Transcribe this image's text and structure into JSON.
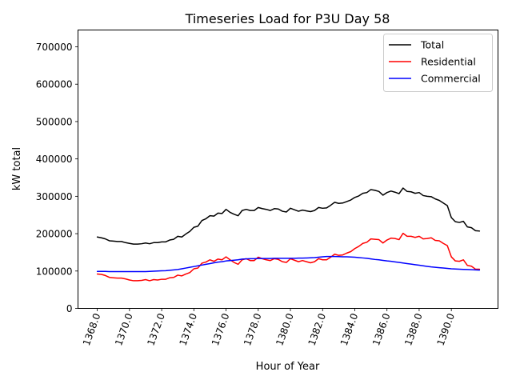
{
  "chart_data": {
    "type": "line",
    "title": "Timeseries Load for P3U   Day 58",
    "xlabel": "Hour of Year",
    "ylabel": "kW total",
    "xlim": [
      1366.8,
      1392.9
    ],
    "ylim": [
      0,
      745000
    ],
    "xticks": [
      1368.0,
      1370.0,
      1372.0,
      1374.0,
      1376.0,
      1378.0,
      1380.0,
      1382.0,
      1384.0,
      1386.0,
      1388.0,
      1390.0
    ],
    "xtick_labels": [
      "1368.0",
      "1370.0",
      "1372.0",
      "1374.0",
      "1376.0",
      "1378.0",
      "1380.0",
      "1382.0",
      "1384.0",
      "1386.0",
      "1388.0",
      "1390.0"
    ],
    "yticks": [
      0,
      100000,
      200000,
      300000,
      400000,
      500000,
      600000,
      700000
    ],
    "ytick_labels": [
      "0",
      "100000",
      "200000",
      "300000",
      "400000",
      "500000",
      "600000",
      "700000"
    ],
    "legend_position": "top-right",
    "x": [
      1368.0,
      1368.25,
      1368.5,
      1368.75,
      1369.0,
      1369.25,
      1369.5,
      1369.75,
      1370.0,
      1370.25,
      1370.5,
      1370.75,
      1371.0,
      1371.25,
      1371.5,
      1371.75,
      1372.0,
      1372.25,
      1372.5,
      1372.75,
      1373.0,
      1373.25,
      1373.5,
      1373.75,
      1374.0,
      1374.25,
      1374.5,
      1374.75,
      1375.0,
      1375.25,
      1375.5,
      1375.75,
      1376.0,
      1376.25,
      1376.5,
      1376.75,
      1377.0,
      1377.25,
      1377.5,
      1377.75,
      1378.0,
      1378.25,
      1378.5,
      1378.75,
      1379.0,
      1379.25,
      1379.5,
      1379.75,
      1380.0,
      1380.25,
      1380.5,
      1380.75,
      1381.0,
      1381.25,
      1381.5,
      1381.75,
      1382.0,
      1382.25,
      1382.5,
      1382.75,
      1383.0,
      1383.25,
      1383.5,
      1383.75,
      1384.0,
      1384.25,
      1384.5,
      1384.75,
      1385.0,
      1385.25,
      1385.5,
      1385.75,
      1386.0,
      1386.25,
      1386.5,
      1386.75,
      1387.0,
      1387.25,
      1387.5,
      1387.75,
      1388.0,
      1388.25,
      1388.5,
      1388.75,
      1389.0,
      1389.25,
      1389.5,
      1389.75,
      1390.0,
      1390.25,
      1390.5,
      1390.75,
      1391.0,
      1391.25,
      1391.5,
      1391.75
    ],
    "series": [
      {
        "name": "Total",
        "color": "#000000",
        "values": [
          191000,
          189000,
          186000,
          181000,
          180000,
          179000,
          179000,
          176000,
          174000,
          172000,
          172000,
          173000,
          175000,
          173000,
          176000,
          176000,
          178000,
          178000,
          183000,
          185000,
          193000,
          191000,
          199000,
          206000,
          217000,
          220000,
          235000,
          240000,
          248000,
          247000,
          255000,
          254000,
          265000,
          257000,
          252000,
          248000,
          262000,
          265000,
          262000,
          262000,
          270000,
          267000,
          265000,
          262000,
          267000,
          266000,
          260000,
          258000,
          268000,
          264000,
          260000,
          263000,
          261000,
          259000,
          262000,
          270000,
          268000,
          269000,
          276000,
          284000,
          281000,
          282000,
          286000,
          290000,
          297000,
          301000,
          308000,
          310000,
          318000,
          316000,
          313000,
          303000,
          310000,
          314000,
          311000,
          307000,
          322000,
          313000,
          312000,
          308000,
          310000,
          302000,
          300000,
          299000,
          293000,
          289000,
          282000,
          275000,
          243000,
          232000,
          230000,
          233000,
          218000,
          216000,
          208000,
          207000
        ]
      },
      {
        "name": "Residential",
        "color": "#ff0000",
        "values": [
          92000,
          91000,
          88000,
          83000,
          82000,
          81000,
          81000,
          79000,
          76000,
          74000,
          74000,
          75000,
          77000,
          74000,
          77000,
          76000,
          78000,
          78000,
          82000,
          83000,
          89000,
          87000,
          92000,
          96000,
          106000,
          108000,
          121000,
          124000,
          130000,
          126000,
          132000,
          130000,
          138000,
          130000,
          123000,
          118000,
          130000,
          133000,
          128000,
          128000,
          137000,
          133000,
          130000,
          128000,
          133000,
          131000,
          125000,
          123000,
          133000,
          129000,
          125000,
          128000,
          125000,
          122000,
          125000,
          133000,
          130000,
          130000,
          137000,
          145000,
          142000,
          143000,
          148000,
          152000,
          160000,
          166000,
          174000,
          177000,
          186000,
          185000,
          184000,
          175000,
          183000,
          188000,
          187000,
          184000,
          201000,
          193000,
          193000,
          190000,
          193000,
          186000,
          187000,
          189000,
          182000,
          181000,
          174000,
          168000,
          138000,
          127000,
          126000,
          130000,
          115000,
          113000,
          105000,
          105000
        ]
      },
      {
        "name": "Commercial",
        "color": "#0000ff",
        "values": [
          99000,
          99000,
          99000,
          98500,
          98500,
          98500,
          98500,
          98500,
          98500,
          98500,
          98500,
          98500,
          98500,
          99000,
          99500,
          100000,
          100500,
          101000,
          102000,
          103000,
          104000,
          106000,
          108000,
          110000,
          112000,
          114000,
          116000,
          118000,
          120000,
          122000,
          124000,
          125000,
          127000,
          128000,
          129000,
          130000,
          132000,
          132500,
          133000,
          133000,
          133500,
          133500,
          133500,
          133500,
          134000,
          134000,
          134000,
          134000,
          134000,
          134000,
          134500,
          134500,
          135000,
          135500,
          136000,
          137000,
          138000,
          139000,
          139000,
          139000,
          138500,
          138000,
          138000,
          137500,
          137000,
          136000,
          135000,
          134000,
          132500,
          131000,
          130000,
          128500,
          127000,
          126000,
          124500,
          123000,
          121500,
          120000,
          118500,
          117000,
          115500,
          114000,
          112500,
          111000,
          110000,
          109000,
          108000,
          107000,
          106000,
          105500,
          105000,
          104500,
          104000,
          103500,
          103000,
          102500
        ]
      }
    ]
  }
}
